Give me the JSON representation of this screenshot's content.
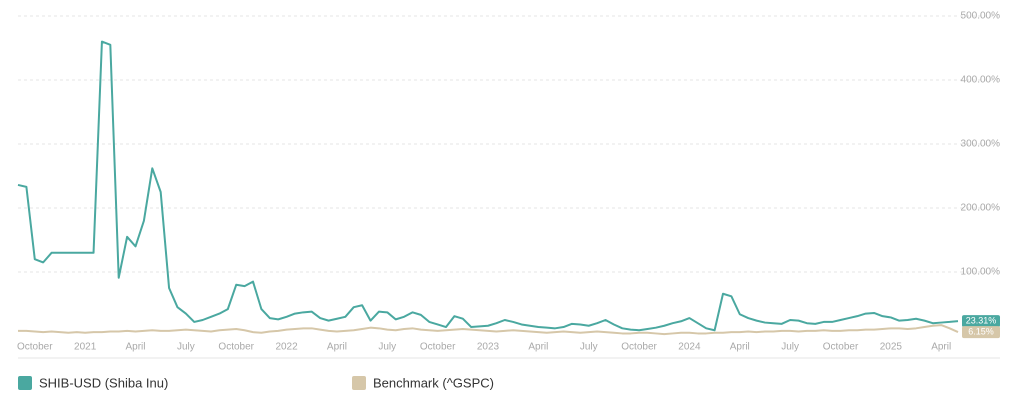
{
  "chart_data": {
    "type": "line",
    "categories": [
      null,
      null,
      "October",
      null,
      null,
      null,
      null,
      null,
      "2021",
      null,
      null,
      null,
      null,
      null,
      "April",
      null,
      null,
      null,
      null,
      null,
      "July",
      null,
      null,
      null,
      null,
      null,
      "October",
      null,
      null,
      null,
      null,
      null,
      "2022",
      null,
      null,
      null,
      null,
      null,
      "April",
      null,
      null,
      null,
      null,
      null,
      "July",
      null,
      null,
      null,
      null,
      null,
      "October",
      null,
      null,
      null,
      null,
      null,
      "2023",
      null,
      null,
      null,
      null,
      null,
      "April",
      null,
      null,
      null,
      null,
      null,
      "July",
      null,
      null,
      null,
      null,
      null,
      "October",
      null,
      null,
      null,
      null,
      null,
      "2024",
      null,
      null,
      null,
      null,
      null,
      "April",
      null,
      null,
      null,
      null,
      null,
      "July",
      null,
      null,
      null,
      null,
      null,
      "October",
      null,
      null,
      null,
      null,
      null,
      "2025",
      null,
      null,
      null,
      null,
      null,
      "April",
      null,
      null
    ],
    "series": [
      {
        "name": "SHIB-USD (Shiba Inu)",
        "color": "#4aa8a0",
        "values": [
          236,
          233,
          120,
          115,
          130,
          130,
          130,
          130,
          130,
          130,
          460,
          455,
          91,
          155,
          140,
          180,
          262,
          225,
          75,
          45,
          35,
          22,
          25,
          30,
          35,
          42,
          80,
          78,
          85,
          42,
          28,
          26,
          30,
          35,
          37,
          38,
          28,
          24,
          27,
          30,
          45,
          48,
          24,
          38,
          37,
          26,
          30,
          37,
          33,
          22,
          18,
          14,
          31,
          27,
          14,
          15,
          16,
          20,
          25,
          22,
          18,
          16,
          14,
          13,
          12,
          14,
          19,
          18,
          16,
          20,
          25,
          18,
          12,
          10,
          9,
          11,
          13,
          16,
          20,
          23,
          28,
          20,
          12,
          9,
          66,
          62,
          34,
          28,
          24,
          21,
          20,
          19,
          25,
          24,
          20,
          19,
          22,
          22,
          25,
          28,
          31,
          35,
          36,
          31,
          29,
          24,
          25,
          27,
          24,
          20,
          21,
          22,
          23.31
        ],
        "value_labels": [
          null,
          null,
          null,
          null,
          null,
          null,
          null,
          null,
          null,
          null,
          null,
          null,
          null,
          null,
          null,
          null,
          null,
          null,
          null,
          null,
          null,
          null,
          null,
          null,
          null,
          null,
          null,
          null,
          null,
          null,
          null,
          null,
          null,
          null,
          null,
          null,
          null,
          null,
          null,
          null,
          null,
          null,
          null,
          null,
          null,
          null,
          null,
          null,
          null,
          null,
          null,
          null,
          null,
          null,
          null,
          null,
          null,
          null,
          null,
          null,
          null,
          null,
          null,
          null,
          null,
          null,
          null,
          null,
          null,
          null,
          null,
          null,
          null,
          null,
          null,
          null,
          null,
          null,
          null,
          null,
          null,
          null,
          null,
          null,
          null,
          null,
          null,
          null,
          null,
          null,
          null,
          null,
          null,
          null,
          null,
          null,
          null,
          null,
          null,
          null,
          null,
          null,
          null,
          null,
          null,
          null,
          null,
          null,
          null,
          null,
          null,
          null,
          "23.31%"
        ]
      },
      {
        "name": "Benchmark (^GSPC)",
        "color": "#d6c7a9",
        "values": [
          8,
          8,
          7,
          6,
          7,
          6,
          5,
          6,
          5,
          6,
          6,
          7,
          7,
          8,
          7,
          8,
          9,
          8,
          8,
          9,
          10,
          9,
          8,
          7,
          9,
          10,
          11,
          9,
          6,
          5,
          7,
          8,
          10,
          11,
          12,
          12,
          10,
          8,
          7,
          8,
          9,
          11,
          13,
          12,
          10,
          9,
          11,
          12,
          10,
          9,
          8,
          9,
          10,
          11,
          10,
          9,
          8,
          7,
          8,
          9,
          8,
          7,
          6,
          5,
          6,
          7,
          6,
          5,
          6,
          7,
          6,
          5,
          4,
          4,
          5,
          5,
          4,
          3,
          4,
          5,
          5,
          4,
          4,
          5,
          5,
          6,
          6,
          7,
          6,
          7,
          7,
          8,
          8,
          7,
          8,
          8,
          9,
          8,
          8,
          9,
          9,
          10,
          10,
          11,
          12,
          12,
          11,
          12,
          14,
          16,
          17,
          12,
          6.15
        ],
        "value_labels": [
          null,
          null,
          null,
          null,
          null,
          null,
          null,
          null,
          null,
          null,
          null,
          null,
          null,
          null,
          null,
          null,
          null,
          null,
          null,
          null,
          null,
          null,
          null,
          null,
          null,
          null,
          null,
          null,
          null,
          null,
          null,
          null,
          null,
          null,
          null,
          null,
          null,
          null,
          null,
          null,
          null,
          null,
          null,
          null,
          null,
          null,
          null,
          null,
          null,
          null,
          null,
          null,
          null,
          null,
          null,
          null,
          null,
          null,
          null,
          null,
          null,
          null,
          null,
          null,
          null,
          null,
          null,
          null,
          null,
          null,
          null,
          null,
          null,
          null,
          null,
          null,
          null,
          null,
          null,
          null,
          null,
          null,
          null,
          null,
          null,
          null,
          null,
          null,
          null,
          null,
          null,
          null,
          null,
          null,
          null,
          null,
          null,
          null,
          null,
          null,
          null,
          null,
          null,
          null,
          null,
          null,
          null,
          null,
          null,
          null,
          null,
          null,
          "6.15%"
        ]
      }
    ],
    "ylim": [
      0,
      500
    ],
    "yticks": [
      {
        "value": 100,
        "label": "100.00%"
      },
      {
        "value": 200,
        "label": "200.00%"
      },
      {
        "value": 300,
        "label": "300.00%"
      },
      {
        "value": 400,
        "label": "400.00%"
      },
      {
        "value": 500,
        "label": "500.00%"
      }
    ],
    "grid": true
  }
}
